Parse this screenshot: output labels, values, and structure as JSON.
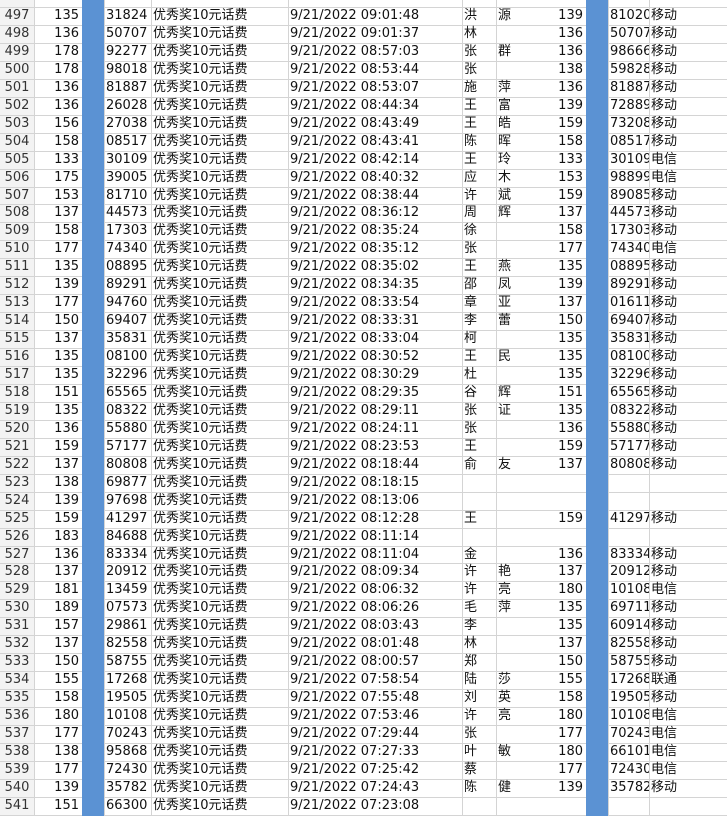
{
  "rows": [
    [
      "497",
      "135",
      "31824",
      "优秀奖10元话费",
      "9/21/2022 09:01:48",
      "洪",
      "源",
      "139",
      "81020",
      "移动"
    ],
    [
      "498",
      "136",
      "50707",
      "优秀奖10元话费",
      "9/21/2022 09:01:37",
      "林",
      null,
      "136",
      "50707",
      "移动"
    ],
    [
      "499",
      "178",
      "92277",
      "优秀奖10元话费",
      "9/21/2022 08:57:03",
      "张",
      "群",
      "136",
      "98666",
      "移动"
    ],
    [
      "500",
      "178",
      "98018",
      "优秀奖10元话费",
      "9/21/2022 08:53:44",
      "张",
      null,
      "138",
      "59828",
      "移动"
    ],
    [
      "501",
      "136",
      "81887",
      "优秀奖10元话费",
      "9/21/2022 08:53:07",
      "施",
      "萍",
      "136",
      "81887",
      "移动"
    ],
    [
      "502",
      "136",
      "26028",
      "优秀奖10元话费",
      "9/21/2022 08:44:34",
      "王",
      "富",
      "139",
      "72889",
      "移动"
    ],
    [
      "503",
      "156",
      "27038",
      "优秀奖10元话费",
      "9/21/2022 08:43:49",
      "王",
      "皓",
      "159",
      "73208",
      "移动"
    ],
    [
      "504",
      "158",
      "08517",
      "优秀奖10元话费",
      "9/21/2022 08:43:41",
      "陈",
      "晖",
      "158",
      "08517",
      "移动"
    ],
    [
      "505",
      "133",
      "30109",
      "优秀奖10元话费",
      "9/21/2022 08:42:14",
      "王",
      "玲",
      "133",
      "30109",
      "电信"
    ],
    [
      "506",
      "175",
      "39005",
      "优秀奖10元话费",
      "9/21/2022 08:40:32",
      "应",
      "木",
      "153",
      "98899",
      "电信"
    ],
    [
      "507",
      "153",
      "81710",
      "优秀奖10元话费",
      "9/21/2022 08:38:44",
      "许",
      "斌",
      "159",
      "89085",
      "移动"
    ],
    [
      "508",
      "137",
      "44573",
      "优秀奖10元话费",
      "9/21/2022 08:36:12",
      "周",
      "辉",
      "137",
      "44573",
      "移动"
    ],
    [
      "509",
      "158",
      "17303",
      "优秀奖10元话费",
      "9/21/2022 08:35:24",
      "徐",
      null,
      "158",
      "17303",
      "移动"
    ],
    [
      "510",
      "177",
      "74340",
      "优秀奖10元话费",
      "9/21/2022 08:35:12",
      "张",
      null,
      "177",
      "74340",
      "电信"
    ],
    [
      "511",
      "135",
      "08895",
      "优秀奖10元话费",
      "9/21/2022 08:35:02",
      "王",
      "燕",
      "135",
      "08895",
      "移动"
    ],
    [
      "512",
      "139",
      "89291",
      "优秀奖10元话费",
      "9/21/2022 08:34:35",
      "邵",
      "凤",
      "139",
      "89291",
      "移动"
    ],
    [
      "513",
      "177",
      "94760",
      "优秀奖10元话费",
      "9/21/2022 08:33:54",
      "章",
      "亚",
      "137",
      "01611",
      "移动"
    ],
    [
      "514",
      "150",
      "69407",
      "优秀奖10元话费",
      "9/21/2022 08:33:31",
      "李",
      "蕾",
      "150",
      "69407",
      "移动"
    ],
    [
      "515",
      "137",
      "35831",
      "优秀奖10元话费",
      "9/21/2022 08:33:04",
      "柯",
      null,
      "135",
      "35831",
      "移动"
    ],
    [
      "516",
      "135",
      "08100",
      "优秀奖10元话费",
      "9/21/2022 08:30:52",
      "王",
      "民",
      "135",
      "08100",
      "移动"
    ],
    [
      "517",
      "135",
      "32296",
      "优秀奖10元话费",
      "9/21/2022 08:30:29",
      "杜",
      null,
      "135",
      "32296",
      "移动"
    ],
    [
      "518",
      "151",
      "65565",
      "优秀奖10元话费",
      "9/21/2022 08:29:35",
      "谷",
      "辉",
      "151",
      "65565",
      "移动"
    ],
    [
      "519",
      "135",
      "08322",
      "优秀奖10元话费",
      "9/21/2022 08:29:11",
      "张",
      "证",
      "135",
      "08322",
      "移动"
    ],
    [
      "520",
      "136",
      "55880",
      "优秀奖10元话费",
      "9/21/2022 08:24:11",
      "张",
      null,
      "136",
      "55880",
      "移动"
    ],
    [
      "521",
      "159",
      "57177",
      "优秀奖10元话费",
      "9/21/2022 08:23:53",
      "王",
      null,
      "159",
      "57177",
      "移动"
    ],
    [
      "522",
      "137",
      "80808",
      "优秀奖10元话费",
      "9/21/2022 08:18:44",
      "俞",
      "友",
      "137",
      "80808",
      "移动"
    ],
    [
      "523",
      "138",
      "69877",
      "优秀奖10元话费",
      "9/21/2022 08:18:15",
      null,
      null,
      null,
      null,
      null
    ],
    [
      "524",
      "139",
      "97698",
      "优秀奖10元话费",
      "9/21/2022 08:13:06",
      null,
      null,
      null,
      null,
      null
    ],
    [
      "525",
      "159",
      "41297",
      "优秀奖10元话费",
      "9/21/2022 08:12:28",
      "王",
      null,
      "159",
      "41297",
      "移动"
    ],
    [
      "526",
      "183",
      "84688",
      "优秀奖10元话费",
      "9/21/2022 08:11:14",
      null,
      null,
      null,
      null,
      null
    ],
    [
      "527",
      "136",
      "83334",
      "优秀奖10元话费",
      "9/21/2022 08:11:04",
      "金",
      null,
      "136",
      "83334",
      "移动"
    ],
    [
      "528",
      "137",
      "20912",
      "优秀奖10元话费",
      "9/21/2022 08:09:34",
      "许",
      "艳",
      "137",
      "20912",
      "移动"
    ],
    [
      "529",
      "181",
      "13459",
      "优秀奖10元话费",
      "9/21/2022 08:06:32",
      "许",
      "亮",
      "180",
      "10108",
      "电信"
    ],
    [
      "530",
      "189",
      "07573",
      "优秀奖10元话费",
      "9/21/2022 08:06:26",
      "毛",
      "萍",
      "135",
      "69711",
      "移动"
    ],
    [
      "531",
      "157",
      "29861",
      "优秀奖10元话费",
      "9/21/2022 08:03:43",
      "李",
      null,
      "135",
      "60914",
      "移动"
    ],
    [
      "532",
      "137",
      "82558",
      "优秀奖10元话费",
      "9/21/2022 08:01:48",
      "林",
      null,
      "137",
      "82558",
      "移动"
    ],
    [
      "533",
      "150",
      "58755",
      "优秀奖10元话费",
      "9/21/2022 08:00:57",
      "郑",
      null,
      "150",
      "58755",
      "移动"
    ],
    [
      "534",
      "155",
      "17268",
      "优秀奖10元话费",
      "9/21/2022 07:58:54",
      "陆",
      "莎",
      "155",
      "17268",
      "联通"
    ],
    [
      "535",
      "158",
      "19505",
      "优秀奖10元话费",
      "9/21/2022 07:55:48",
      "刘",
      "英",
      "158",
      "19505",
      "移动"
    ],
    [
      "536",
      "180",
      "10108",
      "优秀奖10元话费",
      "9/21/2022 07:53:46",
      "许",
      "亮",
      "180",
      "10108",
      "电信"
    ],
    [
      "537",
      "177",
      "70243",
      "优秀奖10元话费",
      "9/21/2022 07:29:44",
      "张",
      null,
      "177",
      "70243",
      "电信"
    ],
    [
      "538",
      "138",
      "95868",
      "优秀奖10元话费",
      "9/21/2022 07:27:33",
      "叶",
      "敏",
      "180",
      "66101",
      "电信"
    ],
    [
      "539",
      "177",
      "72430",
      "优秀奖10元话费",
      "9/21/2022 07:25:42",
      "蔡",
      null,
      "177",
      "72430",
      "电信"
    ],
    [
      "540",
      "139",
      "35782",
      "优秀奖10元话费",
      "9/21/2022 07:24:43",
      "陈",
      "健",
      "139",
      "35782",
      "移动"
    ],
    [
      "541",
      "151",
      "66300",
      "优秀奖10元话费",
      "9/21/2022 07:23:08",
      null,
      null,
      null,
      null,
      null
    ]
  ]
}
